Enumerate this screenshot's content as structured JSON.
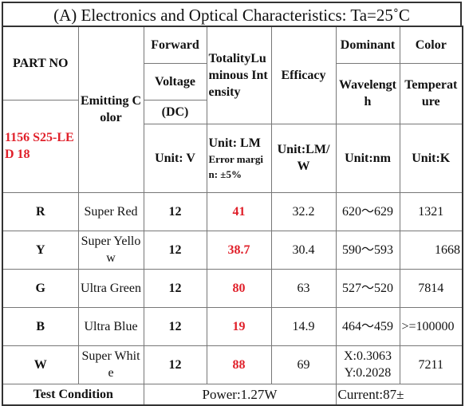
{
  "title": "(A) Electronics and Optical Characteristics: Ta=25˚C",
  "headers": {
    "part_no": "PART NO",
    "part_value": "1156 S25-LED 18",
    "emitting_color": "Emitting Color",
    "forward_line1": "Forward",
    "forward_line2": "Voltage",
    "forward_line3": "(DC)",
    "forward_unit": "Unit: V",
    "luminous": "TotalityLuminous Intensity",
    "luminous_unit": "Unit: LM",
    "luminous_error": "Error margin: ±5%",
    "efficacy": "Efficacy",
    "efficacy_unit": "Unit:LM/W",
    "wavelength_line1": "Dominant",
    "wavelength_line2": "Wavelength",
    "wavelength_unit": "Unit:nm",
    "color_temp_line1": "Color",
    "color_temp_line2": "Temperature",
    "color_temp_unit": "Unit:K"
  },
  "rows": [
    {
      "code": "R",
      "color": "Super Red",
      "voltage": "12",
      "lumens": "41",
      "efficacy": "32.2",
      "wavelength": "620～629",
      "temp": "1321"
    },
    {
      "code": "Y",
      "color": "Super Yellow",
      "voltage": "12",
      "lumens": "38.7",
      "efficacy": "30.4",
      "wavelength": "590～593",
      "temp": "1668"
    },
    {
      "code": "G",
      "color": "Ultra Green",
      "voltage": "12",
      "lumens": "80",
      "efficacy": "63",
      "wavelength": "527～520",
      "temp": "7814"
    },
    {
      "code": "B",
      "color": "Ultra Blue",
      "voltage": "12",
      "lumens": "19",
      "efficacy": "14.9",
      "wavelength": "464～459",
      "temp": ">=100000"
    },
    {
      "code": "W",
      "color": "Super White",
      "voltage": "12",
      "lumens": "88",
      "efficacy": "69",
      "wavelength_x": "X:0.3063",
      "wavelength_y": "Y:0.2028",
      "temp": "7211"
    }
  ],
  "footer": {
    "label": "Test Condition",
    "power": "Power:1.27W",
    "current": "Current:87±"
  }
}
